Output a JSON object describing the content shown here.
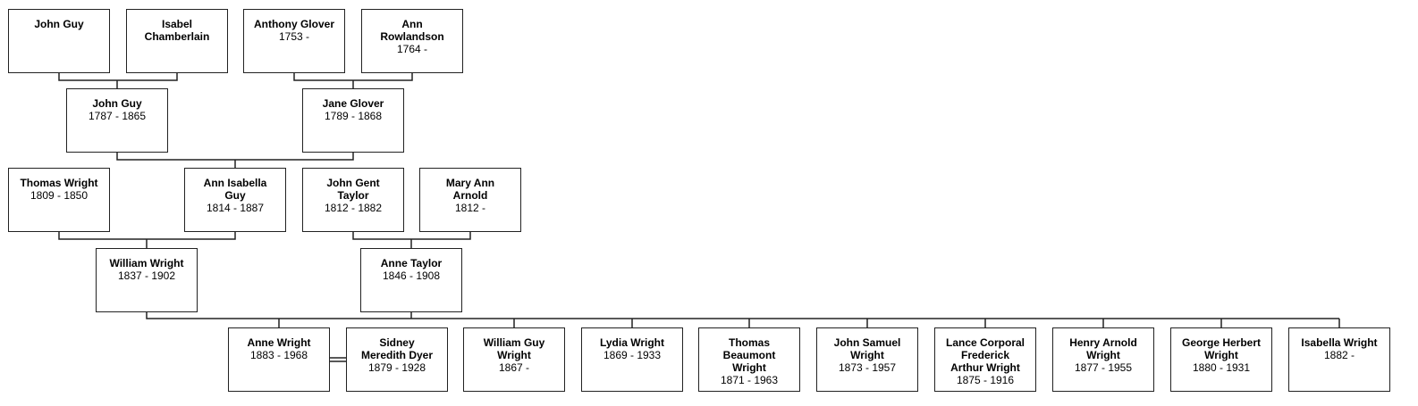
{
  "people": [
    {
      "name": "John Guy",
      "dates": ""
    },
    {
      "name": "Isabel\nChamberlain",
      "dates": ""
    },
    {
      "name": "Anthony Glover",
      "dates": "1753 -"
    },
    {
      "name": "Ann\nRowlandson",
      "dates": "1764 -"
    },
    {
      "name": "John Guy",
      "dates": "1787 - 1865"
    },
    {
      "name": "Jane Glover",
      "dates": "1789 - 1868"
    },
    {
      "name": "Thomas Wright",
      "dates": "1809 - 1850"
    },
    {
      "name": "Ann Isabella\nGuy",
      "dates": "1814 - 1887"
    },
    {
      "name": "John Gent\nTaylor",
      "dates": "1812 - 1882"
    },
    {
      "name": "Mary Ann\nArnold",
      "dates": "1812 -"
    },
    {
      "name": "William Wright",
      "dates": "1837 - 1902"
    },
    {
      "name": "Anne Taylor",
      "dates": "1846 - 1908"
    },
    {
      "name": "Anne Wright",
      "dates": "1883 - 1968"
    },
    {
      "name": "Sidney\nMeredith Dyer",
      "dates": "1879 - 1928"
    },
    {
      "name": "William Guy\nWright",
      "dates": "1867 -"
    },
    {
      "name": "Lydia Wright",
      "dates": "1869 - 1933"
    },
    {
      "name": "Thomas\nBeaumont\nWright",
      "dates": "1871 - 1963"
    },
    {
      "name": "John Samuel\nWright",
      "dates": "1873 - 1957"
    },
    {
      "name": "Lance Corporal\nFrederick\nArthur Wright",
      "dates": "1875 - 1916"
    },
    {
      "name": "Henry Arnold\nWright",
      "dates": "1877 - 1955"
    },
    {
      "name": "George Herbert\nWright",
      "dates": "1880 - 1931"
    },
    {
      "name": "Isabella Wright",
      "dates": "1882 -"
    }
  ]
}
